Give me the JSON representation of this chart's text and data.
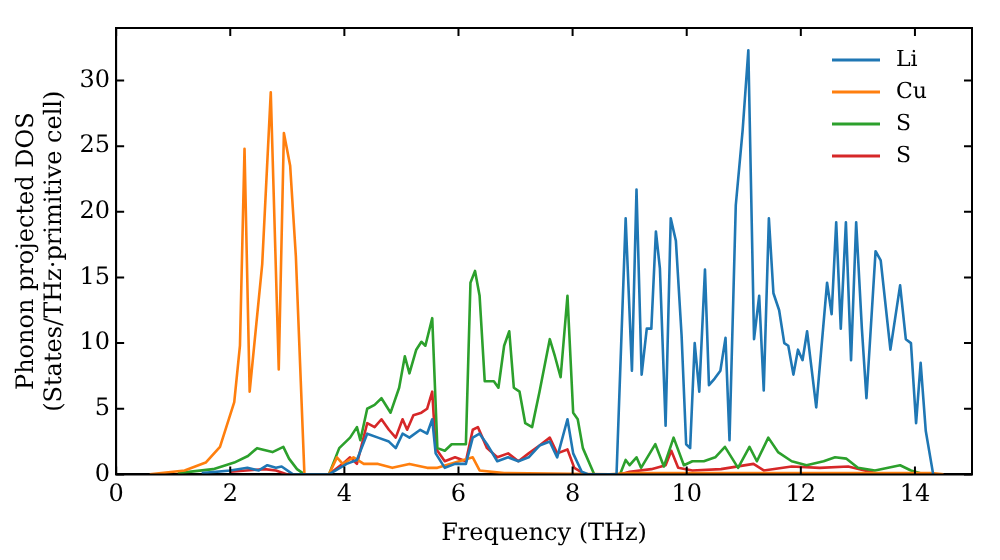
{
  "chart_data": {
    "type": "line",
    "xlabel": "Frequency (THz)",
    "ylabel": "Phonon projected DOS\n(States/THz·primitive cell)",
    "xlim": [
      0,
      15
    ],
    "ylim": [
      0,
      34
    ],
    "xticks": [
      0,
      2,
      4,
      6,
      8,
      10,
      12,
      14
    ],
    "yticks": [
      0,
      5,
      10,
      15,
      20,
      25,
      30
    ],
    "grid": false,
    "legend": "top right",
    "marker": "none",
    "line_style": "solid",
    "series": [
      {
        "name": "Li",
        "color": "#1f77b4",
        "x": [
          1.5,
          2.0,
          2.3,
          2.5,
          2.65,
          2.8,
          2.9,
          3.1,
          3.73,
          4.04,
          4.22,
          4.4,
          4.59,
          4.78,
          4.9,
          5.02,
          5.14,
          5.33,
          5.45,
          5.54,
          5.6,
          5.76,
          5.94,
          6.13,
          6.25,
          6.37,
          6.5,
          6.68,
          6.87,
          7.05,
          7.23,
          7.42,
          7.6,
          7.73,
          7.91,
          8.01,
          8.16,
          8.28,
          8.77,
          8.93,
          9.04,
          9.12,
          9.21,
          9.3,
          9.38,
          9.46,
          9.53,
          9.63,
          9.72,
          9.81,
          9.91,
          9.99,
          10.06,
          10.14,
          10.22,
          10.32,
          10.39,
          10.49,
          10.59,
          10.68,
          10.75,
          10.86,
          10.98,
          11.08,
          11.18,
          11.27,
          11.35,
          11.44,
          11.52,
          11.62,
          11.71,
          11.78,
          11.87,
          11.95,
          12.03,
          12.11,
          12.27,
          12.46,
          12.54,
          12.62,
          12.7,
          12.79,
          12.88,
          12.97,
          13.07,
          13.15,
          13.31,
          13.4,
          13.57,
          13.74,
          13.84,
          13.93,
          14.02,
          14.1,
          14.19,
          14.32
        ],
        "values": [
          0.1,
          0.3,
          0.5,
          0.3,
          0.7,
          0.5,
          0.6,
          0,
          0,
          0.8,
          1.1,
          3.1,
          2.8,
          2.5,
          2.0,
          3.1,
          2.8,
          3.4,
          3.1,
          4.2,
          1.6,
          0.5,
          0.8,
          0.8,
          2.8,
          3.1,
          2.3,
          1.0,
          1.3,
          1.0,
          1.3,
          2.2,
          2.5,
          1.3,
          4.2,
          1.6,
          0.2,
          0,
          0,
          19.5,
          7.9,
          21.7,
          7.6,
          11.1,
          11.1,
          18.5,
          15.7,
          3.7,
          19.5,
          17.8,
          10.6,
          2.3,
          2.0,
          10.0,
          6.3,
          15.6,
          6.8,
          7.3,
          7.9,
          10.4,
          2.6,
          20.5,
          26.2,
          32.3,
          10.3,
          13.6,
          6.4,
          19.5,
          13.8,
          12.5,
          10.0,
          9.8,
          7.6,
          9.5,
          8.7,
          10.9,
          5.1,
          14.6,
          12.2,
          19.2,
          11.1,
          19.2,
          8.7,
          19.2,
          11.1,
          5.8,
          17.0,
          16.3,
          9.5,
          14.4,
          10.3,
          10.0,
          3.9,
          8.5,
          3.3,
          0
        ]
      },
      {
        "name": "Cu",
        "color": "#ff7f0e",
        "x": [
          0.59,
          1.2,
          1.57,
          1.82,
          2.07,
          2.17,
          2.25,
          2.34,
          2.56,
          2.71,
          2.85,
          2.94,
          3.05,
          3.15,
          3.3,
          3.73,
          3.87,
          3.97,
          4.16,
          4.34,
          4.59,
          4.84,
          5.14,
          5.45,
          5.63,
          6.25,
          6.37,
          6.8,
          8.65,
          9.0,
          14.3,
          14.5
        ],
        "values": [
          0,
          0.3,
          0.9,
          2.1,
          5.5,
          9.8,
          24.8,
          6.3,
          16.0,
          29.1,
          8.0,
          26.0,
          23.5,
          16.6,
          0,
          0,
          1.3,
          0.8,
          1.3,
          0.8,
          0.8,
          0.5,
          0.8,
          0.5,
          0.5,
          1.3,
          0.3,
          0.1,
          0,
          0.1,
          0.1,
          0
        ]
      },
      {
        "name": "S",
        "color": "#2ca02c",
        "x": [
          1.08,
          1.7,
          2.07,
          2.31,
          2.47,
          2.74,
          2.93,
          3.03,
          3.17,
          3.3,
          3.73,
          3.91,
          4.1,
          4.22,
          4.28,
          4.4,
          4.53,
          4.65,
          4.81,
          4.96,
          5.06,
          5.14,
          5.26,
          5.35,
          5.42,
          5.54,
          5.63,
          5.76,
          5.88,
          6.0,
          6.13,
          6.21,
          6.29,
          6.37,
          6.46,
          6.62,
          6.7,
          6.8,
          6.89,
          6.97,
          7.07,
          7.17,
          7.29,
          7.42,
          7.6,
          7.69,
          7.79,
          7.91,
          8.01,
          8.09,
          8.18,
          8.38,
          8.83,
          8.93,
          9.0,
          9.12,
          9.2,
          9.45,
          9.6,
          9.77,
          9.95,
          10.1,
          10.3,
          10.5,
          10.67,
          10.9,
          11.1,
          11.23,
          11.43,
          11.6,
          11.84,
          12.1,
          12.4,
          12.6,
          12.8,
          13.0,
          13.3,
          13.74,
          13.93,
          14.17
        ],
        "values": [
          0.1,
          0.4,
          0.9,
          1.4,
          2.0,
          1.7,
          2.1,
          1.2,
          0.4,
          0,
          0,
          2.0,
          2.8,
          3.6,
          2.6,
          5.0,
          5.3,
          5.8,
          4.7,
          6.6,
          9.0,
          7.7,
          9.5,
          10.1,
          9.8,
          11.9,
          2.0,
          1.8,
          2.3,
          2.3,
          2.3,
          14.6,
          15.5,
          13.6,
          7.1,
          7.1,
          6.6,
          9.8,
          10.9,
          6.6,
          6.3,
          3.9,
          3.6,
          6.3,
          10.3,
          9.0,
          7.4,
          13.6,
          4.7,
          4.2,
          2.0,
          0,
          0,
          1.1,
          0.7,
          1.3,
          0.5,
          2.3,
          0.6,
          2.8,
          0.7,
          1.0,
          1.0,
          1.3,
          2.1,
          0.5,
          2.1,
          1.0,
          2.8,
          1.7,
          1.0,
          0.7,
          1.0,
          1.3,
          1.2,
          0.5,
          0.3,
          0.7,
          0.3,
          0
        ]
      },
      {
        "name": "S",
        "color": "#d62728",
        "x": [
          2.0,
          2.6,
          2.8,
          3.0,
          3.73,
          3.97,
          4.1,
          4.22,
          4.4,
          4.53,
          4.65,
          4.78,
          4.9,
          5.02,
          5.1,
          5.21,
          5.35,
          5.45,
          5.54,
          5.6,
          5.76,
          5.94,
          6.13,
          6.25,
          6.34,
          6.5,
          6.68,
          6.87,
          7.05,
          7.23,
          7.42,
          7.6,
          7.73,
          7.91,
          8.03,
          8.22,
          8.83,
          9.0,
          9.38,
          9.63,
          9.73,
          9.85,
          10.1,
          10.6,
          11.17,
          11.35,
          11.84,
          12.33,
          12.83,
          13.3,
          13.8
        ],
        "values": [
          0.2,
          0.4,
          0.3,
          0,
          0,
          0.8,
          1.3,
          0.8,
          3.9,
          3.6,
          4.2,
          3.4,
          2.8,
          4.2,
          3.4,
          4.5,
          4.7,
          5.0,
          6.3,
          2.0,
          1.0,
          1.3,
          1.0,
          3.4,
          3.6,
          2.0,
          1.3,
          1.6,
          1.0,
          1.6,
          2.2,
          2.8,
          1.6,
          1.9,
          0.5,
          0,
          0,
          0.2,
          0.4,
          0.7,
          1.8,
          0.5,
          0.3,
          0.4,
          0.8,
          0.3,
          0.6,
          0.5,
          0.6,
          0.1,
          0
        ]
      }
    ]
  }
}
